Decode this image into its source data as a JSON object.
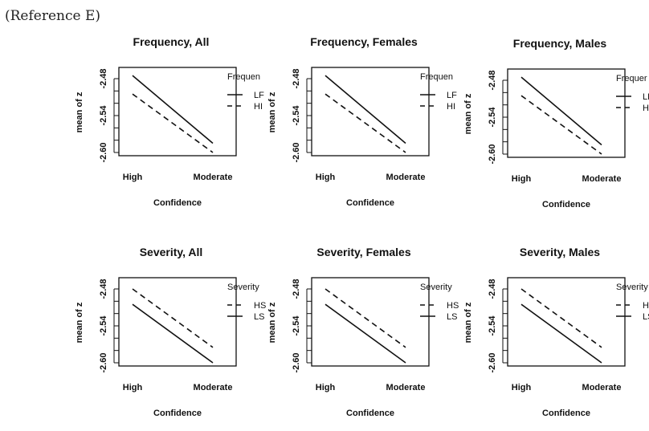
{
  "header": {
    "reference": "(Reference E)"
  },
  "chart_data": [
    {
      "type": "line",
      "title": "Frequency, All",
      "xlabel": "Confidence",
      "ylabel": "mean of  z",
      "categories": [
        "High",
        "Moderate"
      ],
      "yticks": [
        "-2.48",
        "-2.54",
        "-2.60"
      ],
      "ylim": [
        -2.6,
        -2.48
      ],
      "legend_title": "Frequen",
      "series": [
        {
          "name": "LF",
          "dash": false,
          "values": [
            -2.475,
            -2.585
          ]
        },
        {
          "name": "HI",
          "dash": true,
          "values": [
            -2.505,
            -2.6
          ]
        }
      ]
    },
    {
      "type": "line",
      "title": "Frequency, Females",
      "xlabel": "Confidence",
      "ylabel": "mean of z",
      "categories": [
        "High",
        "Moderate"
      ],
      "yticks": [
        "-2.48",
        "-2.54",
        "-2.60"
      ],
      "ylim": [
        -2.6,
        -2.48
      ],
      "legend_title": "Frequen",
      "series": [
        {
          "name": "LF",
          "dash": false,
          "values": [
            -2.475,
            -2.585
          ]
        },
        {
          "name": "HI",
          "dash": true,
          "values": [
            -2.505,
            -2.6
          ]
        }
      ]
    },
    {
      "type": "line",
      "title": "Frequency, Males",
      "xlabel": "Confidence",
      "ylabel": "mean of z",
      "categories": [
        "High",
        "Moderate"
      ],
      "yticks": [
        "-2.48",
        "-2.54",
        "-2.60"
      ],
      "ylim": [
        -2.6,
        -2.48
      ],
      "legend_title": "Frequer",
      "series": [
        {
          "name": "LF",
          "dash": false,
          "values": [
            -2.475,
            -2.585
          ]
        },
        {
          "name": "HF",
          "dash": true,
          "values": [
            -2.505,
            -2.6
          ]
        }
      ]
    },
    {
      "type": "line",
      "title": "Severity, All",
      "xlabel": "Confidence",
      "ylabel": "mean of  z",
      "categories": [
        "High",
        "Moderate"
      ],
      "yticks": [
        "-2.48",
        "-2.54",
        "-2.60"
      ],
      "ylim": [
        -2.6,
        -2.48
      ],
      "legend_title": "Severity",
      "series": [
        {
          "name": "HS",
          "dash": true,
          "values": [
            -2.48,
            -2.575
          ]
        },
        {
          "name": "LS",
          "dash": false,
          "values": [
            -2.505,
            -2.6
          ]
        }
      ]
    },
    {
      "type": "line",
      "title": "Severity, Females",
      "xlabel": "Confidence",
      "ylabel": "mean of z",
      "categories": [
        "High",
        "Moderate"
      ],
      "yticks": [
        "-2.48",
        "-2.54",
        "-2.60"
      ],
      "ylim": [
        -2.6,
        -2.48
      ],
      "legend_title": "Severity",
      "series": [
        {
          "name": "HS",
          "dash": true,
          "values": [
            -2.48,
            -2.575
          ]
        },
        {
          "name": "LS",
          "dash": false,
          "values": [
            -2.505,
            -2.6
          ]
        }
      ]
    },
    {
      "type": "line",
      "title": "Severity, Males",
      "xlabel": "Confidence",
      "ylabel": "mean of z",
      "categories": [
        "High",
        "Moderate"
      ],
      "yticks": [
        "-2.48",
        "-2.54",
        "-2.60"
      ],
      "ylim": [
        -2.6,
        -2.48
      ],
      "legend_title": "Severity",
      "series": [
        {
          "name": "HS",
          "dash": true,
          "values": [
            -2.48,
            -2.575
          ]
        },
        {
          "name": "LS",
          "dash": false,
          "values": [
            -2.505,
            -2.6
          ]
        }
      ]
    }
  ]
}
